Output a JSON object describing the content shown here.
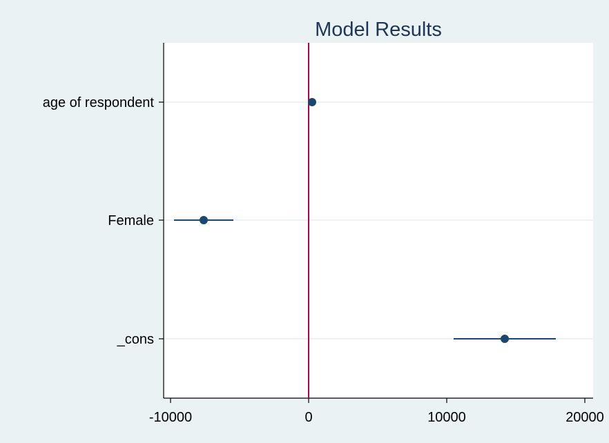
{
  "chart_data": {
    "type": "scatter",
    "title": "Model Results",
    "xlabel": "",
    "ylabel": "",
    "xlim": [
      -10500,
      20600
    ],
    "xticks": [
      -10000,
      0,
      10000,
      20000
    ],
    "xtick_labels": [
      "-10000",
      "0",
      "10000",
      "20000"
    ],
    "reference_line_x": 0,
    "grid": "horizontal",
    "legend": "none",
    "categories": [
      "age of respondent",
      "Female",
      "_cons"
    ],
    "points": [
      {
        "label": "age of respondent",
        "estimate": 250,
        "ci_low": 150,
        "ci_high": 350
      },
      {
        "label": "Female",
        "estimate": -7600,
        "ci_low": -9750,
        "ci_high": -5450
      },
      {
        "label": "_cons",
        "estimate": 14200,
        "ci_low": 10500,
        "ci_high": 17900
      }
    ],
    "colors": {
      "background": "#eaf2f3",
      "plot": "#ffffff",
      "marker": "#1a476f",
      "reference_line": "#b0004a",
      "grid": "#e8eef0",
      "title": "#1e3558"
    }
  }
}
